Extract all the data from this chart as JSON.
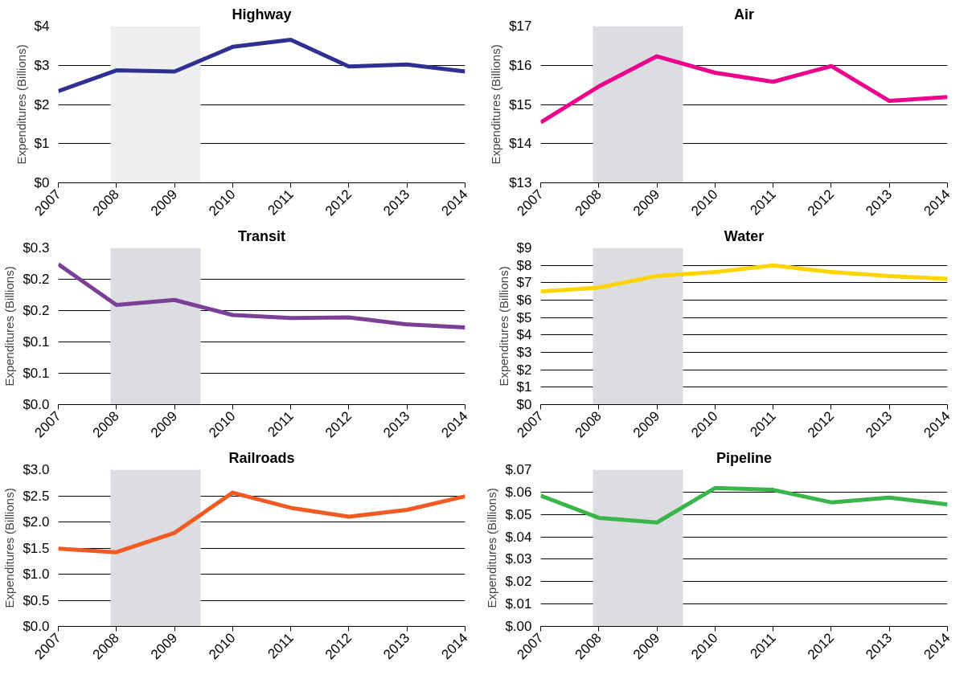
{
  "chart_data": [
    {
      "type": "line",
      "title": "Highway",
      "ylabel": "Expenditures (Billions)",
      "x": [
        2007,
        2008,
        2009,
        2010,
        2011,
        2012,
        2013,
        2014
      ],
      "xlim": [
        2007,
        2014
      ],
      "xticks": [
        2007,
        2008,
        2009,
        2010,
        2011,
        2012,
        2013,
        2014
      ],
      "ylim": [
        0,
        4
      ],
      "yticks": [
        {
          "value": 0,
          "label": "$0"
        },
        {
          "value": 1,
          "label": "$1"
        },
        {
          "value": 2,
          "label": "$2"
        },
        {
          "value": 3,
          "label": "$3"
        },
        {
          "value": 4,
          "label": "$4"
        }
      ],
      "grid": "y",
      "series": [
        {
          "color": "#2e3192",
          "values": [
            2.34,
            2.87,
            2.84,
            3.47,
            3.65,
            2.97,
            3.02,
            2.84
          ]
        }
      ],
      "bands": [
        {
          "axis": "x",
          "from": 2007.9,
          "to": 2009.45,
          "color": "#eeeff1"
        }
      ]
    },
    {
      "type": "line",
      "title": "Air",
      "ylabel": "Expenditures (Billions)",
      "x": [
        2007,
        2008,
        2009,
        2010,
        2011,
        2012,
        2013,
        2014
      ],
      "xlim": [
        2007,
        2014
      ],
      "xticks": [
        2007,
        2008,
        2009,
        2010,
        2011,
        2012,
        2013,
        2014
      ],
      "ylim": [
        13,
        17
      ],
      "yticks": [
        {
          "value": 13,
          "label": "$13"
        },
        {
          "value": 14,
          "label": "$14"
        },
        {
          "value": 15,
          "label": "$15"
        },
        {
          "value": 16,
          "label": "$16"
        },
        {
          "value": 17,
          "label": "$17"
        }
      ],
      "grid": "y",
      "series": [
        {
          "color": "#ec008c",
          "values": [
            14.54,
            15.46,
            16.23,
            15.81,
            15.58,
            15.98,
            15.09,
            15.19
          ]
        }
      ],
      "bands": [
        {
          "axis": "x",
          "from": 2007.9,
          "to": 2009.45,
          "color": "#dcdde0"
        }
      ]
    },
    {
      "type": "line",
      "title": "Transit",
      "ylabel": "Expenditures (Billions)",
      "x": [
        2007,
        2008,
        2009,
        2010,
        2011,
        2012,
        2013,
        2014
      ],
      "xlim": [
        2007,
        2014
      ],
      "xticks": [
        2007,
        2008,
        2009,
        2010,
        2011,
        2012,
        2013,
        2014
      ],
      "ylim": [
        0,
        0.25
      ],
      "yticks": [
        {
          "value": 0,
          "label": "$0.0"
        },
        {
          "value": 0.05,
          "label": "$0.1"
        },
        {
          "value": 0.1,
          "label": "$0.1"
        },
        {
          "value": 0.15,
          "label": "$0.2"
        },
        {
          "value": 0.2,
          "label": "$0.2"
        },
        {
          "value": 0.25,
          "label": "$0.3"
        }
      ],
      "grid": "y",
      "series": [
        {
          "color": "#7b3f98",
          "values": [
            0.224,
            0.159,
            0.167,
            0.143,
            0.138,
            0.139,
            0.128,
            0.123
          ]
        }
      ],
      "bands": [
        {
          "axis": "x",
          "from": 2007.9,
          "to": 2009.45,
          "color": "#dcdde0"
        }
      ]
    },
    {
      "type": "line",
      "title": "Water",
      "ylabel": "Expenditures (Billions)",
      "x": [
        2007,
        2008,
        2009,
        2010,
        2011,
        2012,
        2013,
        2014
      ],
      "xlim": [
        2007,
        2014
      ],
      "xticks": [
        2007,
        2008,
        2009,
        2010,
        2011,
        2012,
        2013,
        2014
      ],
      "ylim": [
        0,
        9
      ],
      "yticks": [
        {
          "value": 0,
          "label": "$0"
        },
        {
          "value": 1,
          "label": "$1"
        },
        {
          "value": 2,
          "label": "$2"
        },
        {
          "value": 3,
          "label": "$3"
        },
        {
          "value": 4,
          "label": "$4"
        },
        {
          "value": 5,
          "label": "$5"
        },
        {
          "value": 6,
          "label": "$6"
        },
        {
          "value": 7,
          "label": "$7"
        },
        {
          "value": 8,
          "label": "$8"
        },
        {
          "value": 9,
          "label": "$9"
        }
      ],
      "grid": "y",
      "series": [
        {
          "color": "#ffd400",
          "values": [
            6.5,
            6.72,
            7.39,
            7.61,
            8.0,
            7.61,
            7.39,
            7.22
          ]
        }
      ],
      "bands": [
        {
          "axis": "x",
          "from": 2007.9,
          "to": 2009.45,
          "color": "#dcdde0"
        }
      ]
    },
    {
      "type": "line",
      "title": "Railroads",
      "ylabel": "Expenditures (Billions)",
      "x": [
        2007,
        2008,
        2009,
        2010,
        2011,
        2012,
        2013,
        2014
      ],
      "xlim": [
        2007,
        2014
      ],
      "xticks": [
        2007,
        2008,
        2009,
        2010,
        2011,
        2012,
        2013,
        2014
      ],
      "ylim": [
        0,
        3
      ],
      "yticks": [
        {
          "value": 0,
          "label": "$0.0"
        },
        {
          "value": 0.5,
          "label": "$0.5"
        },
        {
          "value": 1,
          "label": "$1.0"
        },
        {
          "value": 1.5,
          "label": "$1.5"
        },
        {
          "value": 2,
          "label": "$2.0"
        },
        {
          "value": 2.5,
          "label": "$2.5"
        },
        {
          "value": 3,
          "label": "$3.0"
        }
      ],
      "grid": "y",
      "series": [
        {
          "color": "#f15a22",
          "values": [
            1.49,
            1.42,
            1.79,
            2.56,
            2.27,
            2.1,
            2.23,
            2.49
          ]
        }
      ],
      "bands": [
        {
          "axis": "x",
          "from": 2007.9,
          "to": 2009.45,
          "color": "#dcdde0"
        }
      ]
    },
    {
      "type": "line",
      "title": "Pipeline",
      "ylabel": "Expenditures (Billions)",
      "x": [
        2007,
        2008,
        2009,
        2010,
        2011,
        2012,
        2013,
        2014
      ],
      "xlim": [
        2007,
        2014
      ],
      "xticks": [
        2007,
        2008,
        2009,
        2010,
        2011,
        2012,
        2013,
        2014
      ],
      "ylim": [
        0,
        0.07
      ],
      "yticks": [
        {
          "value": 0,
          "label": "$.00"
        },
        {
          "value": 0.01,
          "label": "$.01"
        },
        {
          "value": 0.02,
          "label": "$.02"
        },
        {
          "value": 0.03,
          "label": "$.03"
        },
        {
          "value": 0.04,
          "label": "$.04"
        },
        {
          "value": 0.05,
          "label": "$.05"
        },
        {
          "value": 0.06,
          "label": "$.06"
        },
        {
          "value": 0.07,
          "label": "$.07"
        }
      ],
      "grid": "y",
      "series": [
        {
          "color": "#39b54a",
          "values": [
            0.0584,
            0.0485,
            0.0464,
            0.0618,
            0.061,
            0.0554,
            0.0575,
            0.0545
          ]
        }
      ],
      "bands": [
        {
          "axis": "x",
          "from": 2007.9,
          "to": 2009.45,
          "color": "#dcdde0"
        }
      ]
    }
  ]
}
